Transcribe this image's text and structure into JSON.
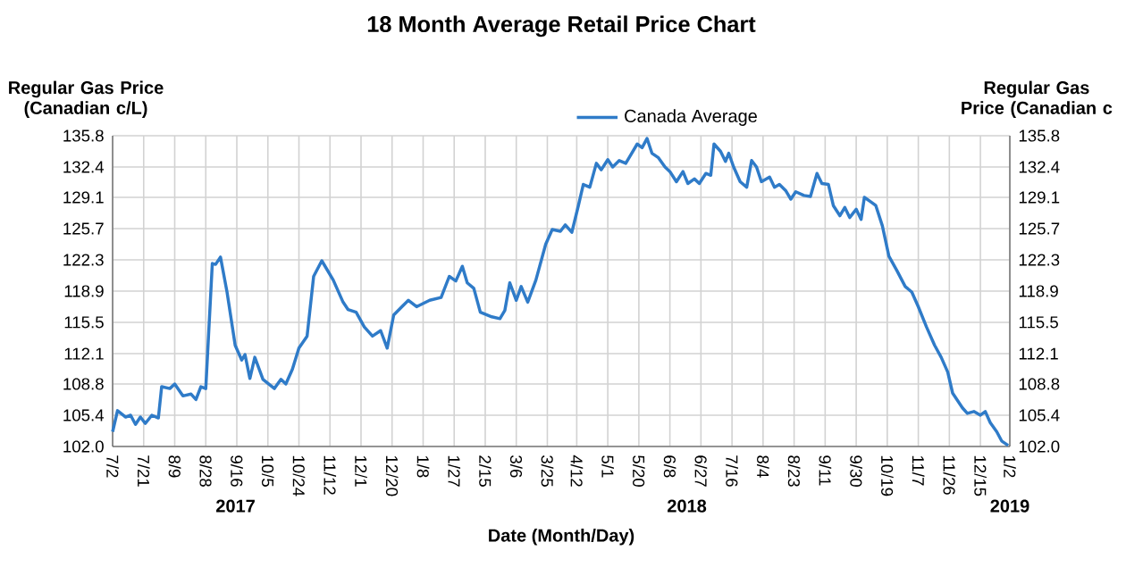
{
  "chart_data": {
    "type": "line",
    "title": "18 Month Average Retail Price Chart",
    "xlabel": "Date (Month/Day)",
    "ylabel": "Regular Gas Price (Canadian c/L)",
    "y2label": "Regular Gas Price (Canadian c",
    "annotations": [
      "2017",
      "2018",
      "2019"
    ],
    "xlim": [
      "2017-07-02",
      "2019-01-02"
    ],
    "xticks": [
      {
        "value": "2017-07-02",
        "label": "7/2"
      },
      {
        "value": "2017-07-21",
        "label": "7/21"
      },
      {
        "value": "2017-08-09",
        "label": "8/9"
      },
      {
        "value": "2017-08-28",
        "label": "8/28"
      },
      {
        "value": "2017-09-16",
        "label": "9/16"
      },
      {
        "value": "2017-10-05",
        "label": "10/5"
      },
      {
        "value": "2017-10-24",
        "label": "10/24"
      },
      {
        "value": "2017-11-12",
        "label": "11/12"
      },
      {
        "value": "2017-12-01",
        "label": "12/1"
      },
      {
        "value": "2017-12-20",
        "label": "12/20"
      },
      {
        "value": "2018-01-08",
        "label": "1/8"
      },
      {
        "value": "2018-01-27",
        "label": "1/27"
      },
      {
        "value": "2018-02-15",
        "label": "2/15"
      },
      {
        "value": "2018-03-06",
        "label": "3/6"
      },
      {
        "value": "2018-03-25",
        "label": "3/25"
      },
      {
        "value": "2018-04-12",
        "label": "4/12"
      },
      {
        "value": "2018-05-01",
        "label": "5/1"
      },
      {
        "value": "2018-05-20",
        "label": "5/20"
      },
      {
        "value": "2018-06-08",
        "label": "6/8"
      },
      {
        "value": "2018-06-27",
        "label": "6/27"
      },
      {
        "value": "2018-07-16",
        "label": "7/16"
      },
      {
        "value": "2018-08-04",
        "label": "8/4"
      },
      {
        "value": "2018-08-23",
        "label": "8/23"
      },
      {
        "value": "2018-09-11",
        "label": "9/11"
      },
      {
        "value": "2018-09-30",
        "label": "9/30"
      },
      {
        "value": "2018-10-19",
        "label": "10/19"
      },
      {
        "value": "2018-11-07",
        "label": "11/7"
      },
      {
        "value": "2018-11-26",
        "label": "11/26"
      },
      {
        "value": "2018-12-15",
        "label": "12/15"
      },
      {
        "value": "2019-01-02",
        "label": "1/2"
      }
    ],
    "ylim": [
      102.0,
      135.8
    ],
    "yticks": [
      {
        "value": 102.0,
        "label": "102.0"
      },
      105.4,
      108.8,
      112.1,
      115.5,
      118.9,
      122.3,
      125.7,
      129.1,
      132.4,
      135.8
    ],
    "y2lim": [
      102.0,
      135.8
    ],
    "y2ticks": [
      {
        "value": 102.0,
        "label": "102.0"
      },
      105.4,
      108.8,
      112.1,
      115.5,
      118.9,
      122.3,
      125.7,
      129.1,
      132.4,
      135.8
    ],
    "grid": true,
    "legend": "top",
    "series": [
      {
        "name": "Canada Average",
        "color": "#2f7bc8",
        "x": [
          "2017-07-02",
          "2017-07-05",
          "2017-07-10",
          "2017-07-13",
          "2017-07-16",
          "2017-07-19",
          "2017-07-22",
          "2017-07-26",
          "2017-07-30",
          "2017-08-01",
          "2017-08-06",
          "2017-08-09",
          "2017-08-14",
          "2017-08-19",
          "2017-08-22",
          "2017-08-25",
          "2017-08-28",
          "2017-09-01",
          "2017-09-03",
          "2017-09-06",
          "2017-09-10",
          "2017-09-15",
          "2017-09-19",
          "2017-09-21",
          "2017-09-24",
          "2017-09-27",
          "2017-10-02",
          "2017-10-09",
          "2017-10-13",
          "2017-10-16",
          "2017-10-20",
          "2017-10-24",
          "2017-10-29",
          "2017-11-02",
          "2017-11-07",
          "2017-11-14",
          "2017-11-20",
          "2017-11-23",
          "2017-11-28",
          "2017-12-03",
          "2017-12-08",
          "2017-12-13",
          "2017-12-17",
          "2017-12-21",
          "2017-12-26",
          "2017-12-30",
          "2018-01-04",
          "2018-01-12",
          "2018-01-19",
          "2018-01-24",
          "2018-01-28",
          "2018-02-01",
          "2018-02-04",
          "2018-02-08",
          "2018-02-12",
          "2018-02-19",
          "2018-02-24",
          "2018-02-27",
          "2018-03-02",
          "2018-03-06",
          "2018-03-09",
          "2018-03-13",
          "2018-03-18",
          "2018-03-24",
          "2018-03-28",
          "2018-04-02",
          "2018-04-05",
          "2018-04-09",
          "2018-04-13",
          "2018-04-16",
          "2018-04-20",
          "2018-04-24",
          "2018-04-27",
          "2018-05-01",
          "2018-05-04",
          "2018-05-08",
          "2018-05-12",
          "2018-05-15",
          "2018-05-19",
          "2018-05-22",
          "2018-05-25",
          "2018-05-28",
          "2018-06-01",
          "2018-06-05",
          "2018-06-08",
          "2018-06-12",
          "2018-06-16",
          "2018-06-19",
          "2018-06-23",
          "2018-06-26",
          "2018-06-30",
          "2018-07-03",
          "2018-07-05",
          "2018-07-09",
          "2018-07-12",
          "2018-07-14",
          "2018-07-17",
          "2018-07-21",
          "2018-07-25",
          "2018-07-28",
          "2018-07-31",
          "2018-08-03",
          "2018-08-08",
          "2018-08-11",
          "2018-08-14",
          "2018-08-18",
          "2018-08-21",
          "2018-08-24",
          "2018-08-29",
          "2018-09-02",
          "2018-09-06",
          "2018-09-09",
          "2018-09-13",
          "2018-09-16",
          "2018-09-20",
          "2018-09-23",
          "2018-09-26",
          "2018-09-30",
          "2018-10-03",
          "2018-10-05",
          "2018-10-09",
          "2018-10-12",
          "2018-10-16",
          "2018-10-20",
          "2018-10-25",
          "2018-10-30",
          "2018-11-03",
          "2018-11-07",
          "2018-11-12",
          "2018-11-17",
          "2018-11-21",
          "2018-11-25",
          "2018-11-28",
          "2018-12-04",
          "2018-12-07",
          "2018-12-11",
          "2018-12-15",
          "2018-12-18",
          "2018-12-21",
          "2018-12-25",
          "2018-12-28",
          "2019-01-01"
        ],
        "values": [
          103.6,
          105.9,
          105.2,
          105.4,
          104.4,
          105.2,
          104.5,
          105.4,
          105.1,
          108.5,
          108.3,
          108.8,
          107.5,
          107.7,
          107.1,
          108.5,
          108.3,
          121.9,
          121.8,
          122.6,
          118.8,
          113.0,
          111.4,
          112.0,
          109.4,
          111.7,
          109.3,
          108.3,
          109.3,
          108.8,
          110.4,
          112.7,
          114.0,
          120.5,
          122.2,
          120.1,
          117.7,
          116.9,
          116.6,
          115.0,
          114.0,
          114.6,
          112.7,
          116.3,
          117.2,
          117.9,
          117.2,
          117.9,
          118.2,
          120.5,
          120.0,
          121.6,
          119.8,
          119.2,
          116.6,
          116.1,
          115.9,
          116.8,
          119.8,
          117.9,
          119.4,
          117.7,
          120.1,
          124.0,
          125.6,
          125.4,
          126.1,
          125.3,
          128.2,
          130.5,
          130.2,
          132.8,
          132.1,
          133.2,
          132.4,
          133.1,
          132.8,
          133.7,
          134.9,
          134.5,
          135.5,
          133.9,
          133.4,
          132.4,
          131.9,
          130.8,
          131.9,
          130.6,
          131.1,
          130.6,
          131.7,
          131.5,
          134.9,
          134.1,
          133.0,
          133.9,
          132.4,
          130.8,
          130.2,
          133.1,
          132.4,
          130.8,
          131.3,
          130.2,
          130.5,
          129.8,
          128.9,
          129.7,
          129.3,
          129.2,
          131.7,
          130.6,
          130.5,
          128.2,
          127.1,
          128.0,
          126.9,
          127.8,
          126.7,
          129.1,
          128.6,
          128.2,
          126.0,
          122.7,
          121.1,
          119.4,
          118.8,
          117.2,
          115.0,
          113.0,
          111.7,
          110.1,
          107.8,
          106.2,
          105.6,
          105.8,
          105.4,
          105.8,
          104.6,
          103.6,
          102.6,
          102.1
        ]
      }
    ]
  }
}
